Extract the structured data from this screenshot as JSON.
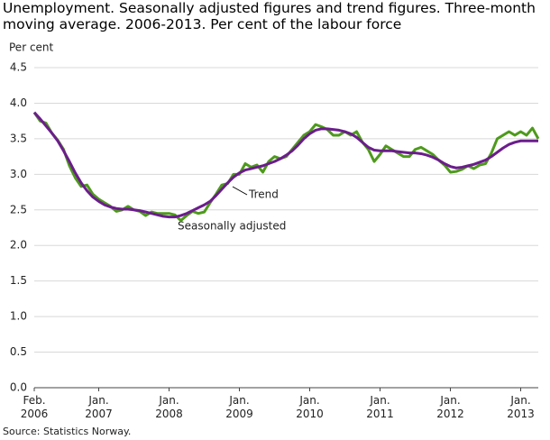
{
  "chart_data": {
    "type": "line",
    "title": "Unemployment. Seasonally adjusted figures and trend figures. Three-month moving average. 2006-2013. Per cent of the labour force",
    "y_label": "Per cent",
    "source": "Source: Statistics Norway.",
    "x": [
      "2006-02",
      "2006-03",
      "2006-04",
      "2006-05",
      "2006-06",
      "2006-07",
      "2006-08",
      "2006-09",
      "2006-10",
      "2006-11",
      "2006-12",
      "2007-01",
      "2007-02",
      "2007-03",
      "2007-04",
      "2007-05",
      "2007-06",
      "2007-07",
      "2007-08",
      "2007-09",
      "2007-10",
      "2007-11",
      "2007-12",
      "2008-01",
      "2008-02",
      "2008-03",
      "2008-04",
      "2008-05",
      "2008-06",
      "2008-07",
      "2008-08",
      "2008-09",
      "2008-10",
      "2008-11",
      "2008-12",
      "2009-01",
      "2009-02",
      "2009-03",
      "2009-04",
      "2009-05",
      "2009-06",
      "2009-07",
      "2009-08",
      "2009-09",
      "2009-10",
      "2009-11",
      "2009-12",
      "2010-01",
      "2010-02",
      "2010-03",
      "2010-04",
      "2010-05",
      "2010-06",
      "2010-07",
      "2010-08",
      "2010-09",
      "2010-10",
      "2010-11",
      "2010-12",
      "2011-01",
      "2011-02",
      "2011-03",
      "2011-04",
      "2011-05",
      "2011-06",
      "2011-07",
      "2011-08",
      "2011-09",
      "2011-10",
      "2011-11",
      "2011-12",
      "2012-01",
      "2012-02",
      "2012-03",
      "2012-04",
      "2012-05",
      "2012-06",
      "2012-07",
      "2012-08",
      "2012-09",
      "2012-10",
      "2012-11",
      "2012-12",
      "2013-01",
      "2013-02",
      "2013-03",
      "2013-04"
    ],
    "xlim": [
      "2006-02",
      "2013-04"
    ],
    "xticks": [
      {
        "value": "2006-02",
        "label": [
          "Feb.",
          "2006"
        ]
      },
      {
        "value": "2007-01",
        "label": [
          "Jan.",
          "2007"
        ]
      },
      {
        "value": "2008-01",
        "label": [
          "Jan.",
          "2008"
        ]
      },
      {
        "value": "2009-01",
        "label": [
          "Jan.",
          "2009"
        ]
      },
      {
        "value": "2010-01",
        "label": [
          "Jan.",
          "2010"
        ]
      },
      {
        "value": "2011-01",
        "label": [
          "Jan.",
          "2011"
        ]
      },
      {
        "value": "2012-01",
        "label": [
          "Jan.",
          "2012"
        ]
      },
      {
        "value": "2013-01",
        "label": [
          "Jan.",
          "2013"
        ]
      }
    ],
    "ylim": [
      0,
      4.5
    ],
    "yticks": [
      {
        "value": 0,
        "label": "0.0"
      },
      0.5,
      {
        "value": 1,
        "label": "1.0"
      },
      1.5,
      {
        "value": 2,
        "label": "2.0"
      },
      2.5,
      {
        "value": 3,
        "label": "3.0"
      },
      3.5,
      {
        "value": 4,
        "label": "4.0"
      },
      4.5
    ],
    "grid": true,
    "series": [
      {
        "name": "Seasonally adjusted",
        "color": "#4e9a1c",
        "values": [
          3.87,
          3.75,
          3.72,
          3.58,
          3.48,
          3.35,
          3.12,
          2.95,
          2.83,
          2.85,
          2.72,
          2.65,
          2.6,
          2.55,
          2.48,
          2.5,
          2.55,
          2.5,
          2.48,
          2.42,
          2.47,
          2.45,
          2.45,
          2.45,
          2.43,
          2.35,
          2.42,
          2.48,
          2.45,
          2.47,
          2.6,
          2.72,
          2.85,
          2.87,
          3.0,
          3.0,
          3.15,
          3.1,
          3.13,
          3.03,
          3.18,
          3.25,
          3.22,
          3.25,
          3.35,
          3.45,
          3.55,
          3.6,
          3.7,
          3.67,
          3.63,
          3.55,
          3.55,
          3.6,
          3.55,
          3.6,
          3.45,
          3.35,
          3.18,
          3.28,
          3.4,
          3.35,
          3.3,
          3.25,
          3.25,
          3.35,
          3.38,
          3.33,
          3.28,
          3.2,
          3.13,
          3.03,
          3.04,
          3.07,
          3.12,
          3.08,
          3.13,
          3.15,
          3.3,
          3.5,
          3.55,
          3.6,
          3.55,
          3.6,
          3.55,
          3.65,
          3.5
        ]
      },
      {
        "name": "Trend",
        "color": "#6b1d8c",
        "values": [
          3.87,
          3.78,
          3.68,
          3.58,
          3.47,
          3.33,
          3.18,
          3.02,
          2.88,
          2.77,
          2.68,
          2.62,
          2.57,
          2.54,
          2.52,
          2.51,
          2.51,
          2.5,
          2.49,
          2.47,
          2.45,
          2.43,
          2.41,
          2.4,
          2.4,
          2.42,
          2.45,
          2.49,
          2.53,
          2.57,
          2.62,
          2.7,
          2.79,
          2.88,
          2.96,
          3.02,
          3.06,
          3.08,
          3.1,
          3.12,
          3.15,
          3.18,
          3.22,
          3.27,
          3.33,
          3.41,
          3.5,
          3.57,
          3.62,
          3.64,
          3.64,
          3.63,
          3.62,
          3.6,
          3.57,
          3.52,
          3.45,
          3.38,
          3.34,
          3.33,
          3.33,
          3.33,
          3.32,
          3.31,
          3.3,
          3.3,
          3.29,
          3.27,
          3.24,
          3.2,
          3.15,
          3.11,
          3.09,
          3.1,
          3.12,
          3.14,
          3.17,
          3.2,
          3.25,
          3.31,
          3.37,
          3.42,
          3.45,
          3.47,
          3.47,
          3.47,
          3.47
        ]
      }
    ]
  }
}
